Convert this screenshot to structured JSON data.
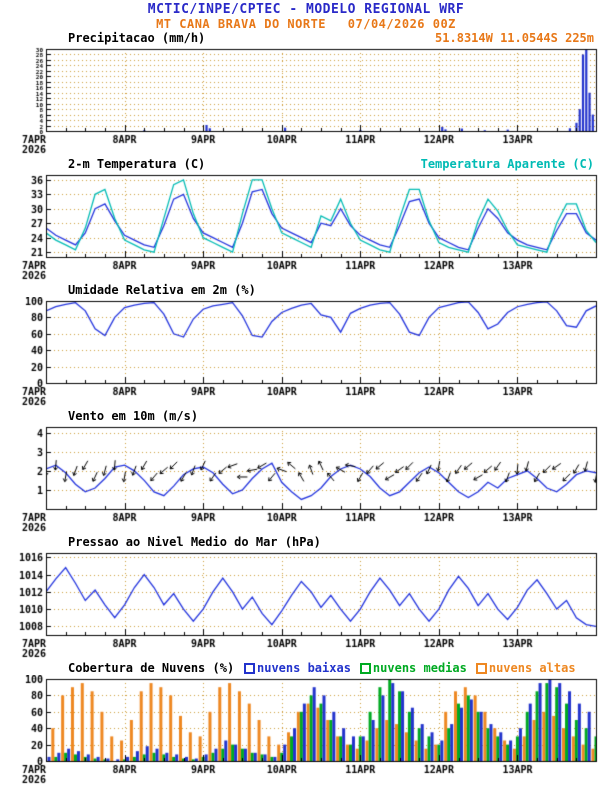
{
  "header": {
    "line1": "MCTIC/INPE/CPTEC - MODELO REGIONAL WRF",
    "line2_left": "MT CANA BRAVA DO NORTE",
    "line2_right": "07/04/2026 00Z"
  },
  "colors": {
    "title_blue": "#2a2ac8",
    "orange": "#e87818",
    "cyan": "#00bbb4",
    "line_blue": "#2233dd",
    "grid": "#cc9933"
  },
  "x_axis": {
    "total_hours": 168,
    "minor_every": 6,
    "day_ticks": [
      {
        "h": 0,
        "label": "7APR",
        "sub": "2026"
      },
      {
        "h": 24,
        "label": "8APR"
      },
      {
        "h": 48,
        "label": "9APR"
      },
      {
        "h": 72,
        "label": "10APR"
      },
      {
        "h": 96,
        "label": "11APR"
      },
      {
        "h": 120,
        "label": "12APR"
      },
      {
        "h": 144,
        "label": "13APR"
      }
    ]
  },
  "chart_data": [
    {
      "id": "precipitacao",
      "type": "bar",
      "title": "Precipitacao (mm/h)",
      "right_label": "51.8314W 11.0544S 225m",
      "ylim": [
        0,
        30
      ],
      "yticks": [
        0,
        2,
        4,
        6,
        8,
        10,
        12,
        14,
        16,
        18,
        20,
        22,
        24,
        26,
        28,
        30
      ],
      "tick_font": 6,
      "bar_color": "#2233cc",
      "bars": [
        [
          30,
          0.3
        ],
        [
          49,
          2.2
        ],
        [
          50,
          1.0
        ],
        [
          73,
          1.2
        ],
        [
          96,
          0.4
        ],
        [
          121,
          1.5
        ],
        [
          122,
          0.6
        ],
        [
          127,
          0.9
        ],
        [
          134,
          0.3
        ],
        [
          141,
          0.5
        ],
        [
          160,
          1.0
        ],
        [
          162,
          3
        ],
        [
          163,
          8
        ],
        [
          164,
          28
        ],
        [
          165,
          30
        ],
        [
          166,
          14
        ],
        [
          167,
          6
        ]
      ]
    },
    {
      "id": "temperatura",
      "type": "line",
      "title": "2-m Temperatura (C)",
      "right_label": "Temperatura Aparente (C)",
      "ylim": [
        20,
        37
      ],
      "yticks": [
        21,
        24,
        27,
        30,
        33,
        36
      ],
      "step": 3,
      "series": [
        {
          "name": "2-m Temperatura (C)",
          "color": "#2233dd",
          "values": [
            26,
            24.5,
            23.5,
            22.5,
            25,
            30,
            31,
            27.5,
            24.5,
            23.5,
            22.5,
            22,
            26.5,
            32,
            33,
            28,
            25,
            24,
            23,
            22,
            27,
            33.5,
            34,
            29,
            26,
            25,
            24,
            23,
            27,
            26.5,
            30,
            26.5,
            24.5,
            23.5,
            22.5,
            22,
            26.5,
            31.5,
            32,
            27,
            24,
            23,
            22,
            21.5,
            26,
            30,
            28,
            25,
            23.5,
            22.5,
            22,
            21.5,
            25.5,
            29,
            29,
            25,
            23.5
          ]
        },
        {
          "name": "Temperatura Aparente (C)",
          "color": "#00bbb4",
          "values": [
            25,
            23.5,
            22.5,
            21.5,
            26,
            33,
            34,
            28,
            23.5,
            22.5,
            21.5,
            21,
            28,
            35,
            36,
            29,
            24,
            23,
            22,
            21,
            29,
            36,
            36,
            30,
            25,
            24,
            23,
            22,
            28.5,
            27.5,
            32,
            27,
            23.5,
            22.5,
            21.5,
            21,
            28,
            34,
            34,
            27.5,
            23,
            22,
            21.5,
            21,
            27.5,
            32,
            29.5,
            25.5,
            22.5,
            22,
            21.5,
            21,
            27,
            31,
            31,
            25.5,
            23
          ]
        }
      ]
    },
    {
      "id": "umidade",
      "type": "line",
      "title": "Umidade Relativa em 2m (%)",
      "ylim": [
        0,
        100
      ],
      "yticks": [
        0,
        20,
        40,
        60,
        80,
        100
      ],
      "step": 3,
      "series": [
        {
          "name": "Umidade Relativa em 2m (%)",
          "color": "#2233dd",
          "values": [
            88,
            93,
            96,
            98,
            88,
            66,
            58,
            80,
            92,
            95,
            97,
            98,
            84,
            60,
            56,
            78,
            90,
            94,
            96,
            98,
            82,
            58,
            56,
            75,
            86,
            91,
            95,
            97,
            83,
            80,
            62,
            85,
            91,
            95,
            97,
            98,
            84,
            62,
            58,
            80,
            92,
            95,
            98,
            99,
            86,
            66,
            72,
            86,
            93,
            96,
            98,
            99,
            88,
            70,
            68,
            88,
            94
          ]
        }
      ]
    },
    {
      "id": "vento",
      "type": "wind",
      "title": "Vento em 10m (m/s)",
      "ylim": [
        0,
        4.3
      ],
      "yticks": [
        1,
        2,
        3,
        4
      ],
      "step": 3,
      "barb_color": "#000000",
      "series": [
        {
          "name": "Vento em 10m (m/s)",
          "color": "#2233dd",
          "values": [
            2.1,
            2.3,
            1.9,
            1.3,
            0.9,
            1.1,
            1.6,
            2.2,
            2.3,
            2.0,
            1.5,
            0.9,
            0.7,
            1.2,
            1.8,
            2.1,
            2.2,
            1.9,
            1.3,
            0.8,
            1.0,
            1.6,
            2.1,
            2.4,
            1.4,
            0.9,
            0.5,
            0.7,
            1.1,
            1.7,
            2.1,
            2.3,
            2.1,
            1.7,
            1.1,
            0.7,
            0.9,
            1.4,
            1.9,
            2.2,
            1.9,
            1.4,
            0.9,
            0.6,
            0.9,
            1.4,
            1.1,
            1.6,
            1.8,
            2.0,
            1.6,
            1.1,
            0.9,
            1.3,
            1.8,
            2.0,
            1.9
          ]
        }
      ],
      "barb_dirs": [
        90,
        95,
        100,
        110,
        120,
        115,
        105,
        95,
        100,
        110,
        120,
        130,
        140,
        135,
        120,
        110,
        115,
        125,
        140,
        160,
        180,
        170,
        150,
        130,
        200,
        220,
        240,
        250,
        245,
        230,
        210,
        190,
        120,
        130,
        140,
        150,
        145,
        135,
        125,
        115,
        100,
        110,
        125,
        140,
        150,
        140,
        125,
        110,
        95,
        105,
        120,
        135,
        145,
        135,
        120,
        105,
        100
      ]
    },
    {
      "id": "pressao",
      "type": "line",
      "title": "Pressao ao Nivel Medio do Mar (hPa)",
      "ylim": [
        1007,
        1016.5
      ],
      "yticks": [
        1008,
        1010,
        1012,
        1014,
        1016
      ],
      "step": 3,
      "series": [
        {
          "name": "Pressao ao Nivel Medio do Mar (hPa)",
          "color": "#2233dd",
          "values": [
            1012,
            1013.5,
            1014.8,
            1013,
            1011,
            1012.2,
            1010.5,
            1009,
            1010.5,
            1012.5,
            1014,
            1012.5,
            1010.5,
            1011.8,
            1010,
            1008.6,
            1010,
            1012,
            1013.6,
            1012,
            1010,
            1011.4,
            1009.5,
            1008.2,
            1009.8,
            1011.6,
            1013.2,
            1012,
            1010.2,
            1011.6,
            1010,
            1008.6,
            1010,
            1012,
            1013.6,
            1012.2,
            1010.4,
            1011.8,
            1010,
            1008.6,
            1010,
            1012.2,
            1013.8,
            1012.4,
            1010.4,
            1011.8,
            1010,
            1008.8,
            1010.2,
            1012.2,
            1013.4,
            1011.8,
            1010,
            1011,
            1009,
            1008.2,
            1008
          ]
        }
      ]
    },
    {
      "id": "nuvens",
      "type": "cloudbar",
      "title": "Cobertura de Nuvens (%)",
      "ylim": [
        0,
        100
      ],
      "yticks": [
        0,
        20,
        40,
        60,
        80,
        100
      ],
      "step": 3,
      "legend": [
        {
          "label": "nuvens baixas",
          "color": "#2233cc"
        },
        {
          "label": "nuvens medias",
          "color": "#00aa22"
        },
        {
          "label": "nuvens altas",
          "color": "#ee8822"
        }
      ],
      "series": [
        {
          "name": "nuvens altas",
          "color": "#ee8822",
          "values": [
            20,
            40,
            80,
            90,
            95,
            85,
            60,
            30,
            25,
            50,
            85,
            95,
            90,
            80,
            55,
            35,
            30,
            60,
            90,
            95,
            85,
            70,
            50,
            30,
            20,
            35,
            60,
            70,
            65,
            50,
            30,
            20,
            15,
            25,
            40,
            50,
            45,
            35,
            25,
            15,
            20,
            60,
            85,
            90,
            80,
            60,
            40,
            25,
            15,
            30,
            50,
            60,
            55,
            40,
            30,
            20,
            15
          ]
        },
        {
          "name": "nuvens medias",
          "color": "#00aa22",
          "values": [
            0,
            5,
            10,
            8,
            5,
            3,
            2,
            0,
            2,
            5,
            8,
            10,
            8,
            5,
            3,
            2,
            5,
            10,
            15,
            20,
            15,
            10,
            8,
            5,
            10,
            30,
            60,
            80,
            70,
            50,
            30,
            20,
            30,
            60,
            90,
            100,
            85,
            60,
            40,
            30,
            20,
            40,
            70,
            80,
            60,
            40,
            30,
            20,
            30,
            60,
            85,
            95,
            90,
            70,
            50,
            40,
            30
          ]
        },
        {
          "name": "nuvens baixas",
          "color": "#2233cc",
          "values": [
            5,
            10,
            15,
            12,
            8,
            5,
            3,
            2,
            5,
            12,
            18,
            15,
            10,
            8,
            5,
            3,
            8,
            15,
            25,
            20,
            15,
            10,
            8,
            5,
            20,
            40,
            70,
            90,
            80,
            60,
            40,
            30,
            30,
            50,
            80,
            95,
            85,
            65,
            45,
            35,
            25,
            45,
            65,
            75,
            60,
            45,
            35,
            25,
            40,
            70,
            95,
            100,
            95,
            85,
            70,
            60,
            90
          ]
        }
      ]
    }
  ]
}
